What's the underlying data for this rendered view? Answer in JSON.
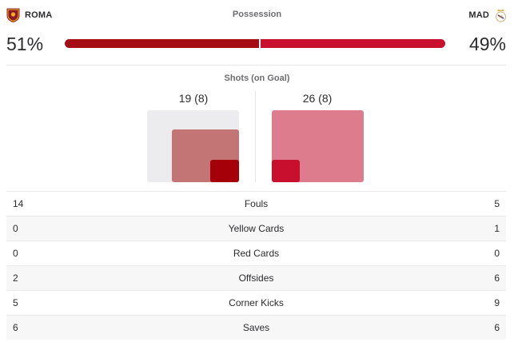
{
  "teams": {
    "home": {
      "abbr": "ROMA",
      "color": "#a50e14",
      "crest_icon": "roma-crest-icon"
    },
    "away": {
      "abbr": "MAD",
      "color": "#c8102e",
      "crest_icon": "real-madrid-crest-icon"
    }
  },
  "possession": {
    "label": "Possession",
    "home_pct": "51%",
    "away_pct": "49%",
    "home_value": 51,
    "away_value": 49
  },
  "shots": {
    "label": "Shots (on Goal)",
    "home_text": "19 (8)",
    "away_text": "26 (8)",
    "home_total": 19,
    "home_on_goal": 8,
    "away_total": 26,
    "away_on_goal": 8
  },
  "stats": [
    {
      "label": "Fouls",
      "home": "14",
      "away": "5"
    },
    {
      "label": "Yellow Cards",
      "home": "0",
      "away": "1"
    },
    {
      "label": "Red Cards",
      "home": "0",
      "away": "0"
    },
    {
      "label": "Offsides",
      "home": "2",
      "away": "6"
    },
    {
      "label": "Corner Kicks",
      "home": "5",
      "away": "9"
    },
    {
      "label": "Saves",
      "home": "6",
      "away": "6"
    }
  ]
}
